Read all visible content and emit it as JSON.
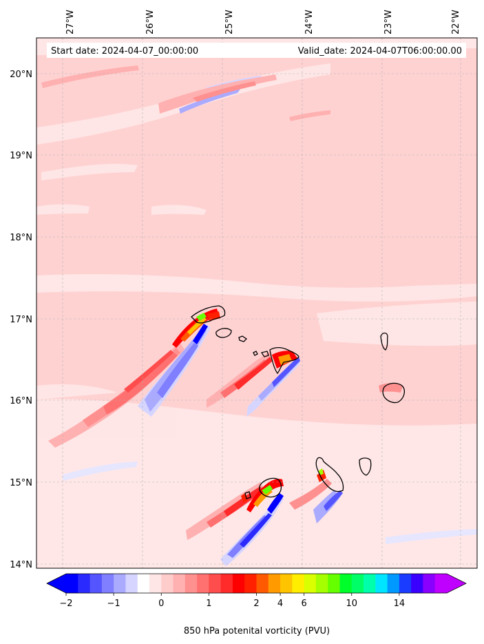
{
  "map": {
    "start_label": "Start date: 2024-04-07_00:00:00",
    "valid_label": "Valid_date: 2024-04-07T06:00:00.00",
    "lon_labels": [
      "27°W",
      "26°W",
      "25°W",
      "24°W",
      "23°W",
      "22°W"
    ],
    "lat_labels": [
      "20°N",
      "19°N",
      "18°N",
      "17°N",
      "16°N",
      "15°N",
      "14°N"
    ],
    "extent": {
      "lon_min": -27.32,
      "lon_max": -21.78,
      "lat_min": 13.95,
      "lat_max": 20.42
    },
    "background_color": "#ffd2d2"
  },
  "colorbar": {
    "label": "850 hPa potenital vorticity (PVU)",
    "tick_labels": [
      "−2",
      "−1",
      "0",
      "1",
      "2",
      "4",
      "6",
      "10",
      "14"
    ],
    "tick_values": [
      -2,
      -1,
      0,
      1,
      2,
      4,
      6,
      10,
      14
    ],
    "colors": [
      "#0000ff",
      "#2a2aff",
      "#5555ff",
      "#7f7fff",
      "#aaaaff",
      "#d5d5ff",
      "#ffffff",
      "#ffe6e6",
      "#ffcccc",
      "#ffb0b0",
      "#ff9090",
      "#ff7070",
      "#ff4c4c",
      "#ff2a2a",
      "#ff0000",
      "#ff2000",
      "#ff5a00",
      "#ff9a00",
      "#ffc400",
      "#ffee00",
      "#d9ff00",
      "#a5ff00",
      "#66ff00",
      "#00ff2a",
      "#00ff66",
      "#00ffaa",
      "#00e5ff",
      "#0099ff",
      "#1a3cff",
      "#3a00ff",
      "#8a00ff",
      "#c000ff"
    ],
    "extend_low_color": "#0000ff",
    "extend_high_color": "#c000ff"
  }
}
